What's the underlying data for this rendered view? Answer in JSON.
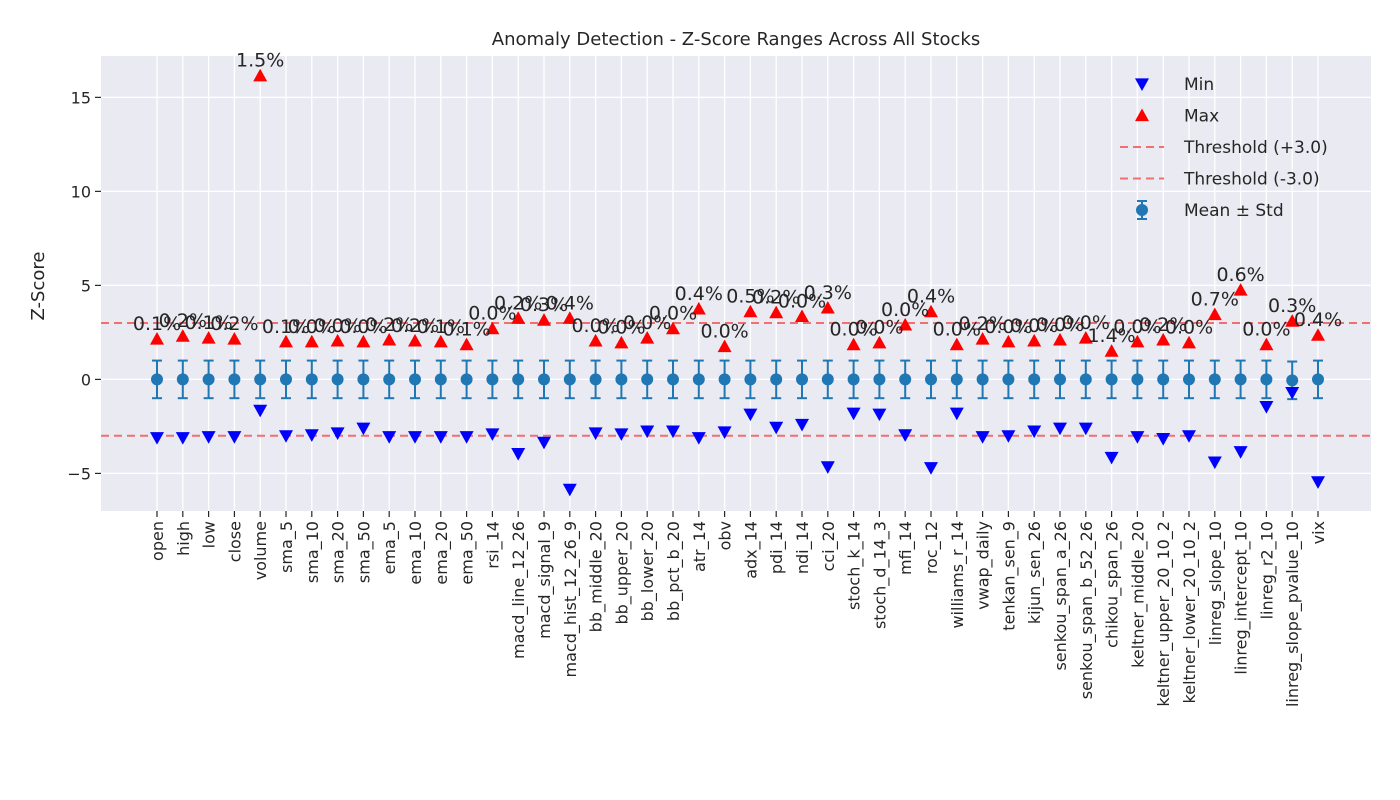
{
  "chart_data": {
    "type": "scatter",
    "title": "Anomaly Detection - Z-Score Ranges Across All Stocks",
    "xlabel": "",
    "ylabel": "Z-Score",
    "ylim": [
      -7,
      17.2
    ],
    "yticks": [
      -5,
      0,
      5,
      10,
      15
    ],
    "grid": true,
    "legend_position": "top-right",
    "colors": {
      "background": "#eaeaf2",
      "grid": "#ffffff",
      "min_marker": "#0000ff",
      "max_marker": "#ff0000",
      "threshold": "#f07070",
      "mean_std": "#1f77b4",
      "text": "#262626"
    },
    "categories": [
      "open",
      "high",
      "low",
      "close",
      "volume",
      "sma_5",
      "sma_10",
      "sma_20",
      "sma_50",
      "ema_5",
      "ema_10",
      "ema_20",
      "ema_50",
      "rsi_14",
      "macd_line_12_26",
      "macd_signal_9",
      "macd_hist_12_26_9",
      "bb_middle_20",
      "bb_upper_20",
      "bb_lower_20",
      "bb_pct_b_20",
      "atr_14",
      "obv",
      "adx_14",
      "pdi_14",
      "ndi_14",
      "cci_20",
      "stoch_k_14",
      "stoch_d_14_3",
      "mfi_14",
      "roc_12",
      "williams_r_14",
      "vwap_daily",
      "tenkan_sen_9",
      "kijun_sen_26",
      "senkou_span_a_26",
      "senkou_span_b_52_26",
      "chikou_span_26",
      "keltner_middle_20",
      "keltner_upper_20_10_2",
      "keltner_lower_20_10_2",
      "linreg_slope_10",
      "linreg_intercept_10",
      "linreg_r2_10",
      "linreg_slope_pvalue_10",
      "vix"
    ],
    "series": [
      {
        "name": "Min",
        "marker": "triangle-down",
        "values": [
          -3.1,
          -3.1,
          -3.05,
          -3.05,
          -1.65,
          -3.0,
          -2.95,
          -2.85,
          -2.6,
          -3.05,
          -3.05,
          -3.05,
          -3.05,
          -2.9,
          -3.95,
          -3.35,
          -5.85,
          -2.85,
          -2.9,
          -2.75,
          -2.75,
          -3.1,
          -2.8,
          -1.85,
          -2.55,
          -2.4,
          -4.65,
          -1.8,
          -1.85,
          -2.95,
          -4.7,
          -1.8,
          -3.05,
          -3.0,
          -2.75,
          -2.6,
          -2.6,
          -4.15,
          -3.05,
          -3.15,
          -3.0,
          -4.4,
          -3.85,
          -1.45,
          -0.7,
          -5.45
        ]
      },
      {
        "name": "Max",
        "marker": "triangle-up",
        "values": [
          2.15,
          2.3,
          2.2,
          2.15,
          16.15,
          2.0,
          2.0,
          2.05,
          2.0,
          2.1,
          2.05,
          2.0,
          1.85,
          2.7,
          3.25,
          3.15,
          3.25,
          2.05,
          1.95,
          2.2,
          2.7,
          3.75,
          1.75,
          3.6,
          3.55,
          3.35,
          3.8,
          1.85,
          1.95,
          2.9,
          3.6,
          1.85,
          2.15,
          2.0,
          2.05,
          2.1,
          2.2,
          1.5,
          2.0,
          2.1,
          1.95,
          3.45,
          4.75,
          1.85,
          3.1,
          2.35
        ]
      },
      {
        "name": "Mean ± Std",
        "marker": "circle-errorbar",
        "mean": [
          0,
          0,
          0,
          0,
          0,
          0,
          0,
          0,
          0,
          0,
          0,
          0,
          0,
          0,
          0,
          0,
          0,
          0,
          0,
          0,
          0,
          0,
          0,
          0,
          0,
          0,
          0,
          0,
          0,
          0,
          0,
          0,
          0,
          0,
          0,
          0,
          0,
          0,
          0,
          0,
          0,
          0,
          0,
          0,
          -0.05,
          0
        ],
        "std": [
          1,
          1,
          1,
          1,
          1,
          1,
          1,
          1,
          1,
          1,
          1,
          1,
          1,
          1,
          1,
          1,
          1,
          1,
          1,
          1,
          1,
          1,
          1,
          1,
          1,
          1,
          1,
          1,
          1,
          1,
          1,
          1,
          1,
          1,
          1,
          1,
          1,
          1,
          1,
          1,
          1,
          1,
          1,
          1,
          1,
          1
        ]
      }
    ],
    "anomaly_pct_labels": [
      "0.1%",
      "0.2%",
      "0.1%",
      "0.2%",
      "1.5%",
      "0.1%",
      "0.0%",
      "0.0%",
      "0.0%",
      "0.2%",
      "0.2%",
      "0.1%",
      "0.1%",
      "0.0%",
      "0.2%",
      "0.3%",
      "0.4%",
      "0.0%",
      "0.0%",
      "0.0%",
      "0.0%",
      "0.4%",
      "0.0%",
      "0.5%",
      "0.2%",
      "0.0%",
      "0.3%",
      "0.0%",
      "0.0%",
      "0.0%",
      "0.4%",
      "0.0%",
      "0.2%",
      "0.0%",
      "0.0%",
      "0.0%",
      "0.0%",
      "1.4%",
      "0.0%",
      "0.2%",
      "0.0%",
      "0.7%",
      "0.6%",
      "0.0%",
      "0.3%",
      "0.4%"
    ],
    "thresholds": [
      {
        "name": "Threshold (+3.0)",
        "value": 3.0
      },
      {
        "name": "Threshold (-3.0)",
        "value": -3.0
      }
    ]
  }
}
